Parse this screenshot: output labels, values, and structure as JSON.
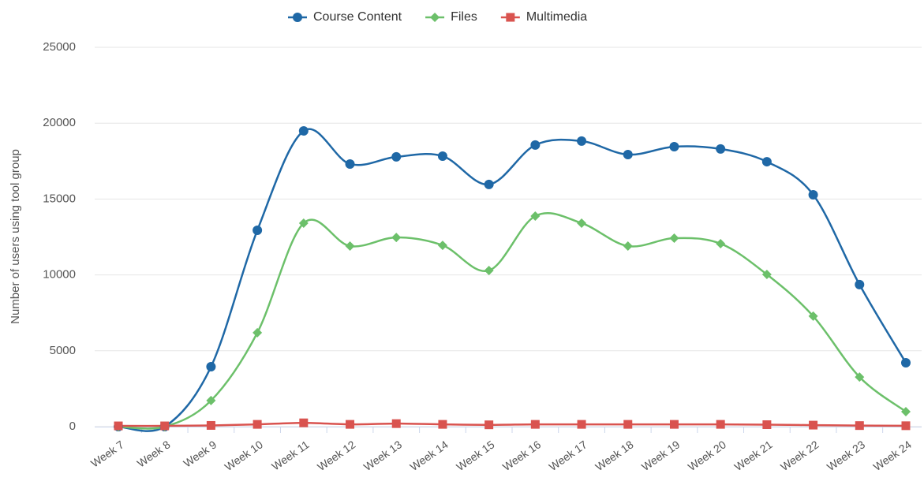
{
  "chart_data": {
    "type": "line",
    "y_label": "Number of users using tool group",
    "categories": [
      "Week 7",
      "Week 8",
      "Week 9",
      "Week 10",
      "Week 11",
      "Week 12",
      "Week 13",
      "Week 14",
      "Week 15",
      "Week 16",
      "Week 17",
      "Week 18",
      "Week 19",
      "Week 20",
      "Week 21",
      "Week 22",
      "Week 23",
      "Week 24"
    ],
    "series": [
      {
        "name": "Course Content",
        "color": "#1f68a6",
        "marker": "circle",
        "values": [
          0,
          0,
          3950,
          12940,
          19490,
          17310,
          17780,
          17830,
          15960,
          18560,
          18820,
          17930,
          18450,
          18300,
          17460,
          15280,
          9360,
          4210
        ]
      },
      {
        "name": "Files",
        "color": "#6cc06a",
        "marker": "diamond",
        "values": [
          0,
          0,
          1720,
          6190,
          13410,
          11900,
          12470,
          11950,
          10290,
          13880,
          13410,
          11900,
          12420,
          12060,
          10030,
          7280,
          3270,
          990
        ]
      },
      {
        "name": "Multimedia",
        "color": "#d9534f",
        "marker": "square",
        "values": [
          50,
          50,
          80,
          150,
          250,
          150,
          200,
          150,
          120,
          150,
          150,
          150,
          150,
          150,
          130,
          100,
          70,
          60
        ]
      }
    ],
    "ylim": [
      0,
      25000
    ],
    "yticks": [
      0,
      5000,
      10000,
      15000,
      20000,
      25000
    ],
    "grid": true
  }
}
